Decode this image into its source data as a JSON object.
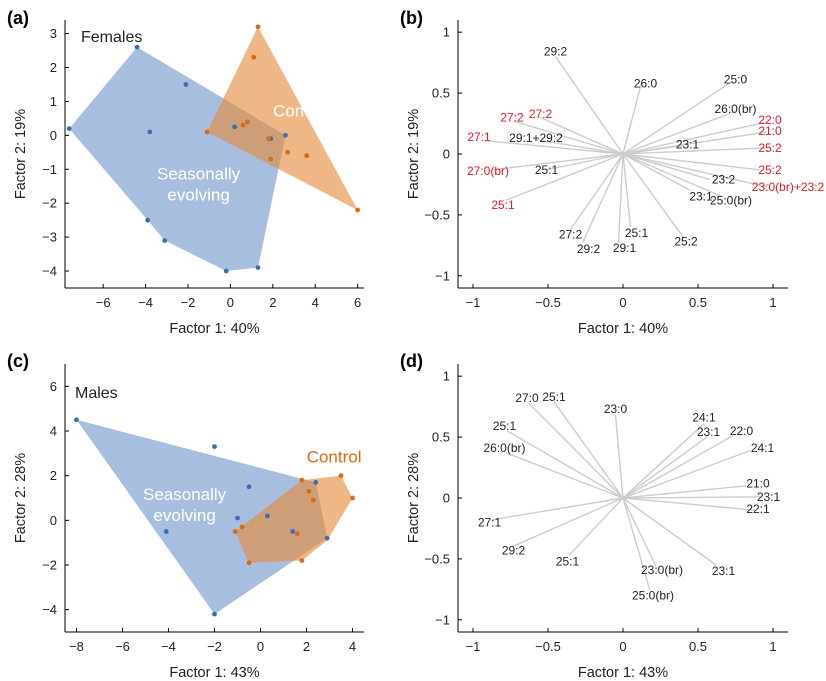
{
  "colors": {
    "seasonal_fill": "#7f9fcf",
    "seasonal_point": "#3e6db5",
    "control_fill": "#e58a3c",
    "control_point": "#d96a10",
    "label_red": "#e31a1c",
    "label_black": "#222222",
    "label_white": "#ffffff",
    "vector_line": "#cccccc"
  },
  "chart_data": [
    {
      "panel": "(a)",
      "type": "scatter",
      "title": "Females",
      "xlabel": "Factor 1: 40%",
      "ylabel": "Factor 2: 19%",
      "xlim": [
        -7.8,
        6.3
      ],
      "ylim": [
        -4.5,
        3.4
      ],
      "xticks": [
        -6,
        -4,
        -2,
        0,
        2,
        4,
        6
      ],
      "yticks": [
        -4,
        -3,
        -2,
        -1,
        0,
        1,
        2,
        3
      ],
      "series": [
        {
          "name": "Seasonally evolving",
          "label_lines": [
            "Seasonally",
            "evolving"
          ],
          "hull": [
            [
              -7.6,
              0.2
            ],
            [
              -4.4,
              2.6
            ],
            [
              2.6,
              0.0
            ],
            [
              1.3,
              -3.9
            ],
            [
              -0.2,
              -4.0
            ],
            [
              -3.1,
              -3.1
            ],
            [
              -3.9,
              -2.5
            ]
          ],
          "points": [
            [
              -7.6,
              0.2
            ],
            [
              -4.4,
              2.6
            ],
            [
              -2.1,
              1.5
            ],
            [
              -3.8,
              0.1
            ],
            [
              -3.9,
              -2.5
            ],
            [
              -3.1,
              -3.1
            ],
            [
              -0.2,
              -4.0
            ],
            [
              1.3,
              -3.9
            ],
            [
              0.2,
              0.25
            ],
            [
              1.9,
              -0.1
            ],
            [
              2.6,
              0.0
            ]
          ]
        },
        {
          "name": "Control",
          "label_lines": [
            "Control"
          ],
          "hull": [
            [
              1.3,
              3.2
            ],
            [
              6.0,
              -2.2
            ],
            [
              -1.1,
              0.1
            ]
          ],
          "points": [
            [
              1.3,
              3.2
            ],
            [
              1.1,
              2.3
            ],
            [
              0.6,
              0.3
            ],
            [
              0.8,
              0.4
            ],
            [
              -1.1,
              0.1
            ],
            [
              1.8,
              -0.1
            ],
            [
              2.7,
              -0.5
            ],
            [
              3.6,
              -0.6
            ],
            [
              1.9,
              -0.7
            ],
            [
              6.0,
              -2.2
            ]
          ]
        }
      ]
    },
    {
      "panel": "(b)",
      "type": "biplot",
      "xlabel": "Factor 1: 40%",
      "ylabel": "Factor 2: 19%",
      "xlim": [
        -1.1,
        1.1
      ],
      "ylim": [
        -1.1,
        1.1
      ],
      "xticks": [
        -1,
        -0.5,
        0,
        0.5,
        1
      ],
      "yticks": [
        -1,
        -0.5,
        0,
        0.5,
        1
      ],
      "vectors": [
        {
          "label": "29:2",
          "end": [
            -0.45,
            0.8
          ],
          "lx": -0.45,
          "ly": 0.84,
          "color": "black"
        },
        {
          "label": "26:0",
          "end": [
            0.12,
            0.57
          ],
          "lx": 0.15,
          "ly": 0.58,
          "color": "black"
        },
        {
          "label": "25:0",
          "end": [
            0.72,
            0.59
          ],
          "lx": 0.75,
          "ly": 0.61,
          "color": "black"
        },
        {
          "label": "26:0(br)",
          "end": [
            0.75,
            0.35
          ],
          "lx": 0.75,
          "ly": 0.37,
          "color": "black"
        },
        {
          "label": "22:0",
          "end": [
            0.95,
            0.26
          ],
          "lx": 0.98,
          "ly": 0.28,
          "color": "red"
        },
        {
          "label": "21:0",
          "end": [
            0.95,
            0.18
          ],
          "lx": 0.98,
          "ly": 0.19,
          "color": "red"
        },
        {
          "label": "25:2",
          "end": [
            0.95,
            0.05
          ],
          "lx": 0.98,
          "ly": 0.05,
          "color": "red"
        },
        {
          "label": "23:1",
          "end": [
            0.4,
            0.07
          ],
          "lx": 0.43,
          "ly": 0.08,
          "color": "black"
        },
        {
          "label": "27:2",
          "end": [
            -0.73,
            0.27
          ],
          "lx": -0.74,
          "ly": 0.3,
          "color": "red"
        },
        {
          "label": "27:2",
          "end": [
            -0.55,
            0.3
          ],
          "lx": -0.55,
          "ly": 0.33,
          "color": "red"
        },
        {
          "label": "27:1",
          "end": [
            -0.93,
            0.11
          ],
          "lx": -0.96,
          "ly": 0.14,
          "color": "red"
        },
        {
          "label": "29:1+29:2",
          "end": [
            -0.59,
            0.12
          ],
          "lx": -0.58,
          "ly": 0.13,
          "color": "black"
        },
        {
          "label": "27:0(br)",
          "end": [
            -0.87,
            -0.13
          ],
          "lx": -0.9,
          "ly": -0.14,
          "color": "red"
        },
        {
          "label": "25:1",
          "end": [
            -0.51,
            -0.13
          ],
          "lx": -0.51,
          "ly": -0.13,
          "color": "black"
        },
        {
          "label": "25:2",
          "end": [
            0.91,
            -0.13
          ],
          "lx": 0.98,
          "ly": -0.13,
          "color": "red"
        },
        {
          "label": "23:2",
          "end": [
            0.58,
            -0.21
          ],
          "lx": 0.67,
          "ly": -0.21,
          "color": "black"
        },
        {
          "label": "23:0(br)+23:2",
          "end": [
            0.96,
            -0.27
          ],
          "lx": 1.1,
          "ly": -0.27,
          "color": "red"
        },
        {
          "label": "23:1",
          "end": [
            0.45,
            -0.3
          ],
          "lx": 0.52,
          "ly": -0.35,
          "color": "black"
        },
        {
          "label": "25:0(br)",
          "end": [
            0.66,
            -0.35
          ],
          "lx": 0.72,
          "ly": -0.38,
          "color": "black"
        },
        {
          "label": "25:1",
          "end": [
            -0.78,
            -0.38
          ],
          "lx": -0.8,
          "ly": -0.42,
          "color": "red"
        },
        {
          "label": "27:2",
          "end": [
            -0.35,
            -0.62
          ],
          "lx": -0.35,
          "ly": -0.66,
          "color": "black"
        },
        {
          "label": "29:2",
          "end": [
            -0.27,
            -0.73
          ],
          "lx": -0.23,
          "ly": -0.78,
          "color": "black"
        },
        {
          "label": "25:1",
          "end": [
            0.05,
            -0.6
          ],
          "lx": 0.09,
          "ly": -0.65,
          "color": "black"
        },
        {
          "label": "29:1",
          "end": [
            -0.03,
            -0.73
          ],
          "lx": 0.01,
          "ly": -0.77,
          "color": "black"
        },
        {
          "label": "25:2",
          "end": [
            0.4,
            -0.68
          ],
          "lx": 0.42,
          "ly": -0.72,
          "color": "black"
        }
      ]
    },
    {
      "panel": "(c)",
      "type": "scatter",
      "title": "Males",
      "xlabel": "Factor 1: 43%",
      "ylabel": "Factor 2: 28%",
      "xlim": [
        -8.5,
        4.5
      ],
      "ylim": [
        -5.0,
        7.0
      ],
      "xticks": [
        -8,
        -6,
        -4,
        -2,
        0,
        2,
        4
      ],
      "yticks": [
        -4,
        -2,
        0,
        2,
        4,
        6
      ],
      "series": [
        {
          "name": "Seasonally evolving",
          "label_lines": [
            "Seasonally",
            "evolving"
          ],
          "hull": [
            [
              -8.0,
              4.5
            ],
            [
              2.4,
              1.7
            ],
            [
              2.9,
              -0.8
            ],
            [
              -2.0,
              -4.2
            ]
          ],
          "points": [
            [
              -8.0,
              4.5
            ],
            [
              -2.0,
              3.3
            ],
            [
              -0.5,
              1.5
            ],
            [
              -1.0,
              0.1
            ],
            [
              -4.1,
              -0.5
            ],
            [
              0.3,
              0.2
            ],
            [
              1.4,
              -0.5
            ],
            [
              2.4,
              1.7
            ],
            [
              2.9,
              -0.8
            ],
            [
              -2.0,
              -4.2
            ]
          ]
        },
        {
          "name": "Control",
          "label_lines": [
            "Control"
          ],
          "hull": [
            [
              3.5,
              2.0
            ],
            [
              4.0,
              1.0
            ],
            [
              2.9,
              -0.9
            ],
            [
              1.8,
              -1.8
            ],
            [
              -0.5,
              -1.9
            ],
            [
              -1.1,
              -0.5
            ],
            [
              1.8,
              1.8
            ]
          ],
          "points": [
            [
              3.5,
              2.0
            ],
            [
              4.0,
              1.0
            ],
            [
              1.8,
              1.8
            ],
            [
              2.1,
              1.3
            ],
            [
              2.3,
              0.9
            ],
            [
              -0.8,
              -0.3
            ],
            [
              -1.1,
              -0.5
            ],
            [
              1.6,
              -0.6
            ],
            [
              1.8,
              -1.8
            ],
            [
              -0.5,
              -1.9
            ]
          ]
        }
      ]
    },
    {
      "panel": "(d)",
      "type": "biplot",
      "xlabel": "Factor 1: 43%",
      "ylabel": "Factor 2: 28%",
      "xlim": [
        -1.1,
        1.1
      ],
      "ylim": [
        -1.1,
        1.1
      ],
      "xticks": [
        -1,
        -0.5,
        0,
        0.5,
        1
      ],
      "yticks": [
        -1,
        -0.5,
        0,
        0.5,
        1
      ],
      "vectors": [
        {
          "label": "27:0",
          "end": [
            -0.63,
            0.78
          ],
          "lx": -0.64,
          "ly": 0.82,
          "color": "black"
        },
        {
          "label": "25:1",
          "end": [
            -0.46,
            0.79
          ],
          "lx": -0.46,
          "ly": 0.83,
          "color": "black"
        },
        {
          "label": "25:1",
          "end": [
            -0.77,
            0.55
          ],
          "lx": -0.79,
          "ly": 0.59,
          "color": "black"
        },
        {
          "label": "26:0(br)",
          "end": [
            -0.78,
            0.37
          ],
          "lx": -0.79,
          "ly": 0.41,
          "color": "black"
        },
        {
          "label": "23:0",
          "end": [
            -0.05,
            0.68
          ],
          "lx": -0.05,
          "ly": 0.73,
          "color": "black"
        },
        {
          "label": "24:1",
          "end": [
            0.54,
            0.61
          ],
          "lx": 0.54,
          "ly": 0.66,
          "color": "black"
        },
        {
          "label": "23:1",
          "end": [
            0.56,
            0.5
          ],
          "lx": 0.57,
          "ly": 0.54,
          "color": "black"
        },
        {
          "label": "22:0",
          "end": [
            0.73,
            0.51
          ],
          "lx": 0.79,
          "ly": 0.55,
          "color": "black"
        },
        {
          "label": "24:1",
          "end": [
            0.85,
            0.39
          ],
          "lx": 0.93,
          "ly": 0.41,
          "color": "black"
        },
        {
          "label": "21:0",
          "end": [
            0.82,
            0.1
          ],
          "lx": 0.9,
          "ly": 0.12,
          "color": "black"
        },
        {
          "label": "23:1",
          "end": [
            0.93,
            0.01
          ],
          "lx": 0.97,
          "ly": 0.01,
          "color": "black"
        },
        {
          "label": "22:1",
          "end": [
            0.88,
            -0.1
          ],
          "lx": 0.9,
          "ly": -0.09,
          "color": "black"
        },
        {
          "label": "27:1",
          "end": [
            -0.88,
            -0.18
          ],
          "lx": -0.89,
          "ly": -0.2,
          "color": "black"
        },
        {
          "label": "29:2",
          "end": [
            -0.74,
            -0.4
          ],
          "lx": -0.73,
          "ly": -0.43,
          "color": "black"
        },
        {
          "label": "25:1",
          "end": [
            -0.36,
            -0.47
          ],
          "lx": -0.37,
          "ly": -0.52,
          "color": "black"
        },
        {
          "label": "23:0(br)",
          "end": [
            0.22,
            -0.56
          ],
          "lx": 0.26,
          "ly": -0.59,
          "color": "black"
        },
        {
          "label": "23:1",
          "end": [
            0.62,
            -0.55
          ],
          "lx": 0.67,
          "ly": -0.6,
          "color": "black"
        },
        {
          "label": "25:0(br)",
          "end": [
            0.18,
            -0.76
          ],
          "lx": 0.2,
          "ly": -0.8,
          "color": "black"
        }
      ]
    }
  ]
}
